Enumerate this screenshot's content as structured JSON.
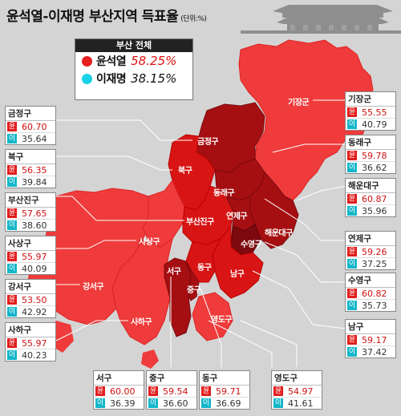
{
  "title": "윤석열-이재명 부산지역 득표율",
  "unit": "(단위:%)",
  "legend": {
    "header": "부산 전체",
    "yoon": {
      "name": "윤석열",
      "pct": "58.25%",
      "color": "#e61e1e"
    },
    "lee": {
      "name": "이재명",
      "pct": "38.15%",
      "color": "#19d2e8"
    }
  },
  "candidate_marks": {
    "yoon": "윤",
    "lee": "이"
  },
  "districts": [
    {
      "id": "geumjeong",
      "name": "금정구",
      "yoon": "60.70",
      "lee": "35.64"
    },
    {
      "id": "buk",
      "name": "북구",
      "yoon": "56.35",
      "lee": "39.84"
    },
    {
      "id": "busanjin",
      "name": "부산진구",
      "yoon": "57.65",
      "lee": "38.60"
    },
    {
      "id": "sasang",
      "name": "사상구",
      "yoon": "55.97",
      "lee": "40.09"
    },
    {
      "id": "gangseo",
      "name": "강서구",
      "yoon": "53.50",
      "lee": "42.92"
    },
    {
      "id": "saha",
      "name": "사하구",
      "yoon": "55.97",
      "lee": "40.23"
    },
    {
      "id": "gijang",
      "name": "기장군",
      "yoon": "55.55",
      "lee": "40.79"
    },
    {
      "id": "dongnae",
      "name": "동래구",
      "yoon": "59.78",
      "lee": "36.62"
    },
    {
      "id": "haeundae",
      "name": "해운대구",
      "yoon": "60.87",
      "lee": "35.96"
    },
    {
      "id": "yeonje",
      "name": "연제구",
      "yoon": "59.26",
      "lee": "37.25"
    },
    {
      "id": "suyeong",
      "name": "수영구",
      "yoon": "60.82",
      "lee": "35.73"
    },
    {
      "id": "nam",
      "name": "남구",
      "yoon": "59.17",
      "lee": "37.42"
    },
    {
      "id": "seo",
      "name": "서구",
      "yoon": "60.00",
      "lee": "36.39"
    },
    {
      "id": "jung",
      "name": "중구",
      "yoon": "59.54",
      "lee": "36.60"
    },
    {
      "id": "dong",
      "name": "동구",
      "yoon": "59.71",
      "lee": "36.69"
    },
    {
      "id": "yeongdo",
      "name": "영도구",
      "yoon": "54.97",
      "lee": "41.61"
    }
  ],
  "map_colors": {
    "light": "#ef3b3b",
    "medium": "#d81414",
    "dark": "#a50f12",
    "darker": "#7d0a0e"
  }
}
